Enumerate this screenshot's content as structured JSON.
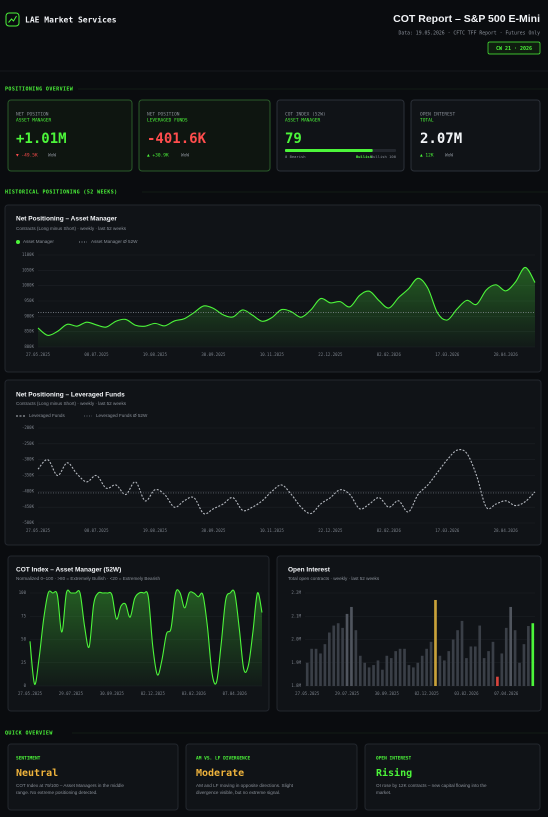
{
  "header": {
    "brand": "LAE Market Services",
    "title": "COT Report – S&P 500 E-Mini",
    "subtitle": "Data: 19.05.2026 · CFTC TFF Report · Futures Only",
    "badge": "CW 21 · 2026"
  },
  "sections": [
    "POSITIONING OVERVIEW",
    "HISTORICAL POSITIONING (52 WEEKS)",
    "QUICK OVERVIEW"
  ],
  "kpis": [
    {
      "label": "NET POSITION",
      "sublabel": "ASSET MANAGER",
      "value": "+1.01M",
      "change": "▼ -49.5K",
      "period": "WoW"
    },
    {
      "label": "NET POSITION",
      "sublabel": "LEVERAGED FUNDS",
      "value": "-401.6K",
      "change": "▲ +30.9K",
      "period": "WoW"
    },
    {
      "label": "COT INDEX (52W)",
      "sublabel": "ASSET MANAGER",
      "value": 79,
      "scale_labels": [
        "0 Bearish",
        "Bullish",
        "Bullish 100"
      ]
    },
    {
      "label": "OPEN INTEREST",
      "sublabel": "TOTAL",
      "value": "2.07M",
      "change": "▲ 12K",
      "period": "WoW"
    }
  ],
  "chart_data": [
    {
      "type": "line",
      "title": "Net Positioning – Asset Manager",
      "subtitle": "Contracts (Long minus Short) · weekly · last 52 weeks",
      "categories": [
        "27.05.2025",
        null,
        null,
        null,
        null,
        null,
        "08.07.2025",
        null,
        null,
        null,
        null,
        null,
        "19.08.2025",
        null,
        null,
        null,
        null,
        null,
        "30.09.2025",
        null,
        null,
        null,
        null,
        null,
        "10.11.2025",
        null,
        null,
        null,
        null,
        null,
        "22.12.2025",
        null,
        null,
        null,
        null,
        null,
        "02.02.2026",
        null,
        null,
        null,
        null,
        null,
        "17.03.2026",
        null,
        null,
        null,
        null,
        null,
        "28.04.2026",
        null,
        null,
        null
      ],
      "series": [
        {
          "name": "Asset Manager",
          "color": "#4cf53a",
          "fill": true,
          "dash": false,
          "values": [
            862000,
            838000,
            851000,
            874000,
            868000,
            881000,
            872000,
            865000,
            884000,
            890000,
            871000,
            868000,
            877000,
            869000,
            885000,
            892000,
            912000,
            934000,
            926000,
            905000,
            898000,
            921000,
            904000,
            884000,
            896000,
            922000,
            915000,
            897000,
            921000,
            958000,
            944000,
            948000,
            931000,
            968000,
            982000,
            951000,
            927000,
            961000,
            989000,
            1024000,
            992000,
            911000,
            888000,
            924000,
            952000,
            939000,
            986000,
            1003000,
            983000,
            1012000,
            1059500,
            1010000
          ]
        }
      ],
      "average": {
        "name": "Asset Manager Ø 52W",
        "color": "#8a9099",
        "value": 912000
      },
      "ylim": [
        800000,
        1100000
      ],
      "yticks": [
        {
          "value": 800000,
          "label": "800K"
        },
        {
          "value": 850000,
          "label": "850K"
        },
        {
          "value": 900000,
          "label": "900K"
        },
        {
          "value": 950000,
          "label": "950K"
        },
        {
          "value": 1000000,
          "label": "1000K"
        },
        {
          "value": 1050000,
          "label": "1050K"
        },
        {
          "value": 1100000,
          "label": "1100K"
        }
      ],
      "grid": true
    },
    {
      "type": "line",
      "title": "Net Positioning – Leveraged Funds",
      "subtitle": "Contracts (Long minus Short) · weekly · last 52 weeks",
      "categories": [
        "27.05.2025",
        null,
        null,
        null,
        null,
        null,
        "08.07.2025",
        null,
        null,
        null,
        null,
        null,
        "19.08.2025",
        null,
        null,
        null,
        null,
        null,
        "30.09.2025",
        null,
        null,
        null,
        null,
        null,
        "10.11.2025",
        null,
        null,
        null,
        null,
        null,
        "22.12.2025",
        null,
        null,
        null,
        null,
        null,
        "02.02.2026",
        null,
        null,
        null,
        null,
        null,
        "17.03.2026",
        null,
        null,
        null,
        null,
        null,
        "28.04.2026",
        null,
        null,
        null
      ],
      "series": [
        {
          "name": "Leveraged Funds",
          "color": "#b4b8bf",
          "fill": false,
          "dash": true,
          "values": [
            -330000,
            -300000,
            -350000,
            -310000,
            -345000,
            -370000,
            -350000,
            -390000,
            -380000,
            -410000,
            -370000,
            -430000,
            -395000,
            -410000,
            -450000,
            -430000,
            -420000,
            -470000,
            -455000,
            -440000,
            -420000,
            -460000,
            -450000,
            -430000,
            -400000,
            -380000,
            -410000,
            -450000,
            -470000,
            -440000,
            -420000,
            -395000,
            -410000,
            -455000,
            -440000,
            -420000,
            -450000,
            -430000,
            -465000,
            -410000,
            -380000,
            -340000,
            -300000,
            -270000,
            -280000,
            -350000,
            -450000,
            -440000,
            -430000,
            -445000,
            -432500,
            -401600
          ]
        }
      ],
      "average": {
        "name": "Leveraged Funds Ø 52W",
        "color": "#5c626b",
        "value": -405000
      },
      "ylim": [
        -500000,
        -200000
      ],
      "yticks": [
        {
          "value": -500000,
          "label": "-500K"
        },
        {
          "value": -450000,
          "label": "-450K"
        },
        {
          "value": -400000,
          "label": "-400K"
        },
        {
          "value": -350000,
          "label": "-350K"
        },
        {
          "value": -300000,
          "label": "-300K"
        },
        {
          "value": -250000,
          "label": "-250K"
        },
        {
          "value": -200000,
          "label": "-200K"
        }
      ],
      "grid": true
    },
    {
      "type": "area",
      "title": "COT Index – Asset Manager (52W)",
      "subtitle": "Normalized 0–100 · >80 = Extremely Bullish · <20 = Extremely Bearish",
      "categories": [
        "27.05.2025",
        null,
        null,
        null,
        null,
        null,
        null,
        null,
        null,
        "29.07.2025",
        null,
        null,
        null,
        null,
        null,
        null,
        null,
        null,
        "30.09.2025",
        null,
        null,
        null,
        null,
        null,
        null,
        null,
        null,
        "02.12.2025",
        null,
        null,
        null,
        null,
        null,
        null,
        null,
        null,
        "03.02.2026",
        null,
        null,
        null,
        null,
        null,
        null,
        null,
        null,
        "07.04.2026",
        null,
        null,
        null,
        null,
        null,
        null
      ],
      "series": [
        {
          "name": "COT Index",
          "color": "#4cf53a",
          "fill": true,
          "dash": false,
          "values": [
            48,
            2,
            30,
            72,
            100,
            100,
            98,
            58,
            100,
            100,
            100,
            100,
            64,
            42,
            88,
            100,
            100,
            100,
            98,
            72,
            86,
            88,
            74,
            94,
            100,
            100,
            96,
            42,
            12,
            28,
            56,
            62,
            100,
            100,
            84,
            100,
            100,
            96,
            98,
            64,
            14,
            4,
            44,
            92,
            100,
            100,
            62,
            18,
            22,
            58,
            100,
            79
          ]
        }
      ],
      "ylim": [
        0,
        100
      ],
      "yticks": [
        0,
        25,
        50,
        75,
        100
      ],
      "grid": true
    },
    {
      "type": "bar",
      "title": "Open Interest",
      "subtitle": "Total open contracts · weekly · last 52 weeks",
      "categories": [
        "27.05.2025",
        null,
        null,
        null,
        null,
        null,
        null,
        null,
        null,
        "29.07.2025",
        null,
        null,
        null,
        null,
        null,
        null,
        null,
        null,
        "30.09.2025",
        null,
        null,
        null,
        null,
        null,
        null,
        null,
        null,
        "02.12.2025",
        null,
        null,
        null,
        null,
        null,
        null,
        null,
        null,
        "03.02.2026",
        null,
        null,
        null,
        null,
        null,
        null,
        null,
        null,
        "07.04.2026",
        null,
        null,
        null,
        null,
        null,
        null
      ],
      "values": [
        1900000,
        1960000,
        1960000,
        1940000,
        1980000,
        2030000,
        2060000,
        2070000,
        2050000,
        2110000,
        2140000,
        2040000,
        1930000,
        1900000,
        1880000,
        1890000,
        1910000,
        1870000,
        1930000,
        1920000,
        1950000,
        1960000,
        1960000,
        1890000,
        1880000,
        1900000,
        1930000,
        1960000,
        1990000,
        2170000,
        1930000,
        1910000,
        1950000,
        2000000,
        2040000,
        2080000,
        1920000,
        1970000,
        1970000,
        2060000,
        1920000,
        1950000,
        1990000,
        1840000,
        1940000,
        2050000,
        2140000,
        2040000,
        1900000,
        1980000,
        2058000,
        2070000
      ],
      "colors": [
        "#3a3f47",
        "#3a3f47",
        "#3a3f47",
        "#3a3f47",
        "#3a3f47",
        "#3a3f47",
        "#3a3f47",
        "#3a3f47",
        "#3a3f47",
        "#50555e",
        "#50555e",
        "#3a3f47",
        "#3a3f47",
        "#3a3f47",
        "#3a3f47",
        "#3a3f47",
        "#3a3f47",
        "#3a3f47",
        "#3a3f47",
        "#3a3f47",
        "#3a3f47",
        "#3a3f47",
        "#3a3f47",
        "#3a3f47",
        "#3a3f47",
        "#3a3f47",
        "#3a3f47",
        "#3a3f47",
        "#3a3f47",
        "#c9a23a",
        "#3a3f47",
        "#3a3f47",
        "#3a3f47",
        "#3a3f47",
        "#3a3f47",
        "#3a3f47",
        "#3a3f47",
        "#3a3f47",
        "#3a3f47",
        "#3a3f47",
        "#3a3f47",
        "#3a3f47",
        "#3a3f47",
        "#d9443c",
        "#3a3f47",
        "#3a3f47",
        "#50555e",
        "#3a3f47",
        "#3a3f47",
        "#3a3f47",
        "#3a3f47",
        "#4cf53a"
      ],
      "ylim": [
        1800000,
        2200000
      ],
      "yticks": [
        {
          "value": 1800000,
          "label": "1.8M"
        },
        {
          "value": 1900000,
          "label": "1.9M"
        },
        {
          "value": 2000000,
          "label": "2.0M"
        },
        {
          "value": 2100000,
          "label": "2.1M"
        },
        {
          "value": 2200000,
          "label": "2.2M"
        }
      ],
      "grid": true
    }
  ],
  "quick_overview": [
    {
      "label": "SENTIMENT",
      "value": "Neutral",
      "description": [
        "COT Index at 79/100 – Asset Managers in the middle",
        "range. No extreme positioning detected."
      ]
    },
    {
      "label": "AM VS. LF DIVERGENCE",
      "value": "Moderate",
      "description": [
        "AM and LF moving in opposite directions. Slight",
        "divergence visible, but no extreme signal."
      ]
    },
    {
      "label": "OPEN INTEREST",
      "value": "Rising",
      "description": [
        "OI rose by 12K contracts – new capital flowing into the",
        "market."
      ]
    }
  ]
}
